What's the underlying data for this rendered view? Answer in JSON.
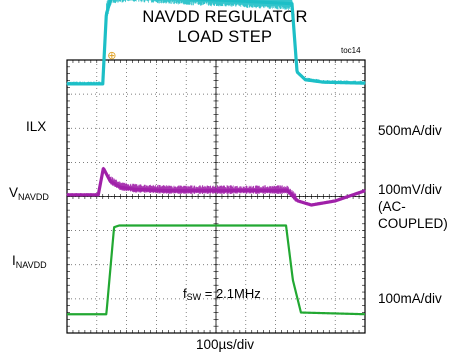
{
  "title": {
    "line1": "NAVDD REGULATOR",
    "line2": "LOAD STEP"
  },
  "figure_id": "toc14",
  "chart_data": {
    "type": "line",
    "title": "NAVDD REGULATOR LOAD STEP",
    "xlabel": "100µs/div",
    "x_divisions": 10,
    "y_divisions": 8,
    "grid": true,
    "annotation": {
      "prefix": "f",
      "sub": "SW",
      "suffix": " = 2.1MHz"
    },
    "series": [
      {
        "name": "ILX",
        "label_main": "ILX",
        "label_sub": "",
        "scale": "500mA/div",
        "color": "#1dbfc6",
        "noisy": true,
        "level_div": 7.3,
        "x": [
          0,
          1.2,
          1.32,
          1.5,
          2.2,
          4.0,
          6.0,
          7.55,
          7.72,
          8.0,
          8.6,
          10
        ],
        "y": [
          0,
          0,
          2.05,
          2.55,
          2.6,
          2.5,
          2.42,
          2.35,
          0.35,
          0.12,
          0.05,
          0.02
        ]
      },
      {
        "name": "VNAVDD",
        "label_main": "V",
        "label_sub": "NAVDD",
        "scale": "100mV/div (AC-COUPLED)",
        "color": "#a020a8",
        "noisy": true,
        "level_div": 4.05,
        "x": [
          0,
          1.05,
          1.22,
          1.45,
          1.8,
          2.3,
          3.5,
          5.0,
          7.4,
          7.75,
          8.2,
          9.0,
          10
        ],
        "y": [
          0,
          0,
          0.78,
          0.4,
          0.22,
          0.16,
          0.12,
          0.12,
          0.12,
          -0.18,
          -0.3,
          -0.18,
          0.12
        ]
      },
      {
        "name": "INAVDD",
        "label_main": "I",
        "label_sub": "NAVDD",
        "scale": "100mA/div",
        "color": "#22a832",
        "noisy": false,
        "level_div": 0.55,
        "x": [
          0,
          1.32,
          1.58,
          1.75,
          7.35,
          7.58,
          7.85,
          10
        ],
        "y": [
          0,
          0,
          2.55,
          2.6,
          2.6,
          1.0,
          0.05,
          0
        ]
      }
    ]
  }
}
